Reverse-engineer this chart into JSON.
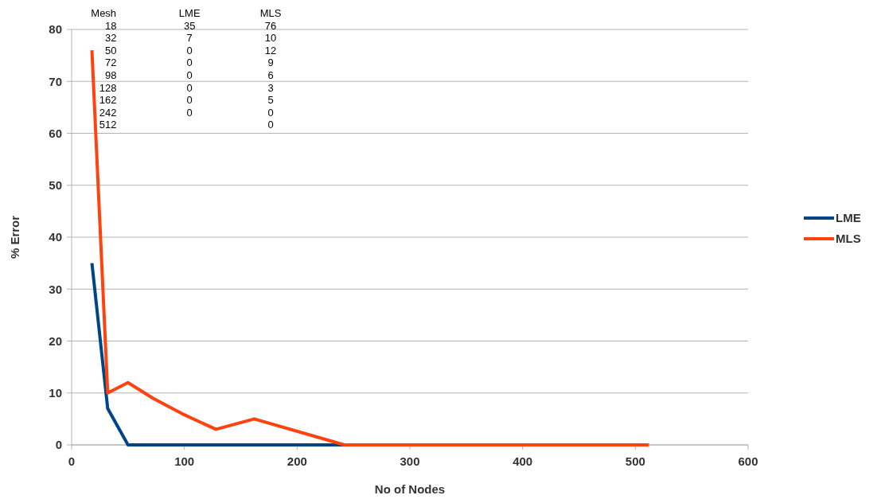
{
  "chart_data": {
    "type": "line",
    "xlabel": "No of Nodes",
    "ylabel": "% Error",
    "x": [
      18,
      32,
      50,
      72,
      98,
      128,
      162,
      242,
      512
    ],
    "series": [
      {
        "name": "LME",
        "color": "#004586",
        "values": [
          35,
          7,
          0,
          0,
          0,
          0,
          0,
          0,
          null
        ]
      },
      {
        "name": "MLS",
        "color": "#ff420e",
        "values": [
          76,
          10,
          12,
          9,
          6,
          3,
          5,
          0,
          0
        ]
      }
    ],
    "xlim": [
      0,
      600
    ],
    "xticks": [
      0,
      100,
      200,
      300,
      400,
      500,
      600
    ],
    "ylim": [
      0,
      80
    ],
    "yticks": [
      0,
      10,
      20,
      30,
      40,
      50,
      60,
      70,
      80
    ],
    "grid": "y",
    "legend": "right",
    "marker": "none",
    "line_style": "solid",
    "annotations": [
      "Mesh LME MLS",
      "18 35 76",
      "32 7 10",
      "50 0 12",
      "72 0 9",
      "98 0 6",
      "128 0 3",
      "162 0 5",
      "242 0 0",
      "512  0"
    ]
  }
}
